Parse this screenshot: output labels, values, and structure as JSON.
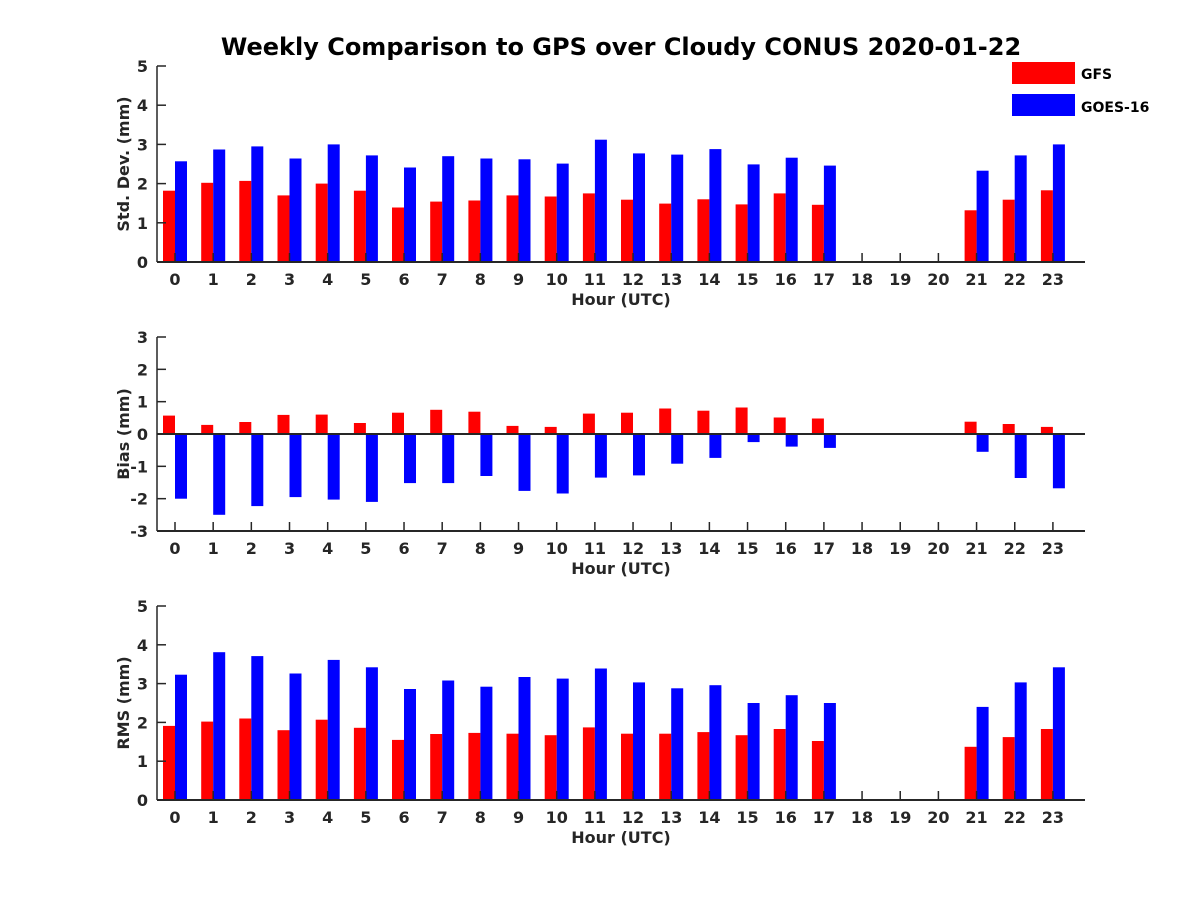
{
  "title": "Weekly Comparison to GPS over Cloudy CONUS 2020-01-22",
  "legend": [
    {
      "name": "GFS",
      "color": "#ff0000"
    },
    {
      "name": "GOES-16",
      "color": "#0000ff"
    }
  ],
  "chart_data": [
    {
      "type": "bar",
      "ylabel": "Std. Dev. (mm)",
      "xlabel": "Hour (UTC)",
      "ylim": [
        0,
        5
      ],
      "yticks": [
        "0",
        "1",
        "2",
        "3",
        "4",
        "5"
      ],
      "categories": [
        "0",
        "1",
        "2",
        "3",
        "4",
        "5",
        "6",
        "7",
        "8",
        "9",
        "10",
        "11",
        "12",
        "13",
        "14",
        "15",
        "16",
        "17",
        "18",
        "19",
        "20",
        "21",
        "22",
        "23"
      ],
      "series": [
        {
          "name": "GFS",
          "color": "#ff0000",
          "values": [
            1.82,
            2.02,
            2.07,
            1.7,
            2.0,
            1.82,
            1.39,
            1.54,
            1.57,
            1.7,
            1.67,
            1.75,
            1.59,
            1.49,
            1.6,
            1.47,
            1.75,
            1.46,
            null,
            null,
            null,
            1.32,
            1.59,
            1.83
          ]
        },
        {
          "name": "GOES-16",
          "color": "#0000ff",
          "values": [
            2.57,
            2.87,
            2.95,
            2.64,
            3.0,
            2.72,
            2.41,
            2.7,
            2.64,
            2.62,
            2.51,
            3.12,
            2.77,
            2.74,
            2.88,
            2.49,
            2.66,
            2.46,
            null,
            null,
            null,
            2.33,
            2.72,
            3.0
          ]
        }
      ]
    },
    {
      "type": "bar",
      "ylabel": "Bias (mm)",
      "xlabel": "Hour (UTC)",
      "ylim": [
        -3,
        3
      ],
      "yticks": [
        "-3",
        "-2",
        "-1",
        "0",
        "1",
        "2",
        "3"
      ],
      "categories": [
        "0",
        "1",
        "2",
        "3",
        "4",
        "5",
        "6",
        "7",
        "8",
        "9",
        "10",
        "11",
        "12",
        "13",
        "14",
        "15",
        "16",
        "17",
        "18",
        "19",
        "20",
        "21",
        "22",
        "23"
      ],
      "series": [
        {
          "name": "GFS",
          "color": "#ff0000",
          "values": [
            0.57,
            0.28,
            0.37,
            0.59,
            0.6,
            0.34,
            0.66,
            0.75,
            0.69,
            0.25,
            0.22,
            0.63,
            0.66,
            0.79,
            0.72,
            0.82,
            0.51,
            0.48,
            null,
            null,
            null,
            0.38,
            0.31,
            0.22
          ]
        },
        {
          "name": "GOES-16",
          "color": "#0000ff",
          "values": [
            -2.0,
            -2.5,
            -2.23,
            -1.95,
            -2.03,
            -2.1,
            -1.52,
            -1.52,
            -1.3,
            -1.76,
            -1.84,
            -1.35,
            -1.28,
            -0.92,
            -0.74,
            -0.25,
            -0.39,
            -0.43,
            null,
            null,
            null,
            -0.55,
            -1.36,
            -1.68
          ]
        }
      ]
    },
    {
      "type": "bar",
      "ylabel": "RMS (mm)",
      "xlabel": "Hour (UTC)",
      "ylim": [
        0,
        5
      ],
      "yticks": [
        "0",
        "1",
        "2",
        "3",
        "4",
        "5"
      ],
      "categories": [
        "0",
        "1",
        "2",
        "3",
        "4",
        "5",
        "6",
        "7",
        "8",
        "9",
        "10",
        "11",
        "12",
        "13",
        "14",
        "15",
        "16",
        "17",
        "18",
        "19",
        "20",
        "21",
        "22",
        "23"
      ],
      "series": [
        {
          "name": "GFS",
          "color": "#ff0000",
          "values": [
            1.91,
            2.02,
            2.1,
            1.8,
            2.07,
            1.86,
            1.55,
            1.7,
            1.73,
            1.71,
            1.67,
            1.87,
            1.71,
            1.71,
            1.75,
            1.67,
            1.83,
            1.52,
            null,
            null,
            null,
            1.37,
            1.62,
            1.83
          ]
        },
        {
          "name": "GOES-16",
          "color": "#0000ff",
          "values": [
            3.23,
            3.81,
            3.71,
            3.26,
            3.61,
            3.42,
            2.86,
            3.08,
            2.92,
            3.17,
            3.13,
            3.39,
            3.03,
            2.88,
            2.96,
            2.5,
            2.7,
            2.5,
            null,
            null,
            null,
            2.4,
            3.03,
            3.42
          ]
        }
      ]
    }
  ]
}
